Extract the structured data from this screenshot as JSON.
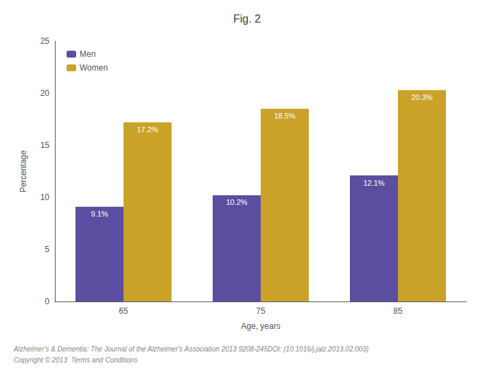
{
  "chart_data": {
    "type": "bar",
    "title": "Fig. 2",
    "xlabel": "Age, years",
    "ylabel": "Percentage",
    "categories": [
      65,
      75,
      85
    ],
    "series": [
      {
        "name": "Men",
        "color": "#5b4ea0",
        "values": [
          9.1,
          10.2,
          12.1
        ],
        "value_labels": [
          "9.1%",
          "10.2%",
          "12.1%"
        ]
      },
      {
        "name": "Women",
        "color": "#c9a227",
        "values": [
          17.2,
          18.5,
          20.3
        ],
        "value_labels": [
          "17.2%",
          "18.5%",
          "20.3%"
        ]
      }
    ],
    "ylim": [
      0,
      25
    ],
    "yticks": [
      0,
      5,
      10,
      15,
      20,
      25
    ],
    "grid": false,
    "legend": "upper left",
    "data_labels": true,
    "annotations": [
      "Alzheimer's & Dementia: The Journal of the Alzheimer's Association 2013 9208-245DOI: (10.1016/j.jalz.2013.02.003)",
      "Copyright © 2013  Terms and Conditions"
    ]
  }
}
